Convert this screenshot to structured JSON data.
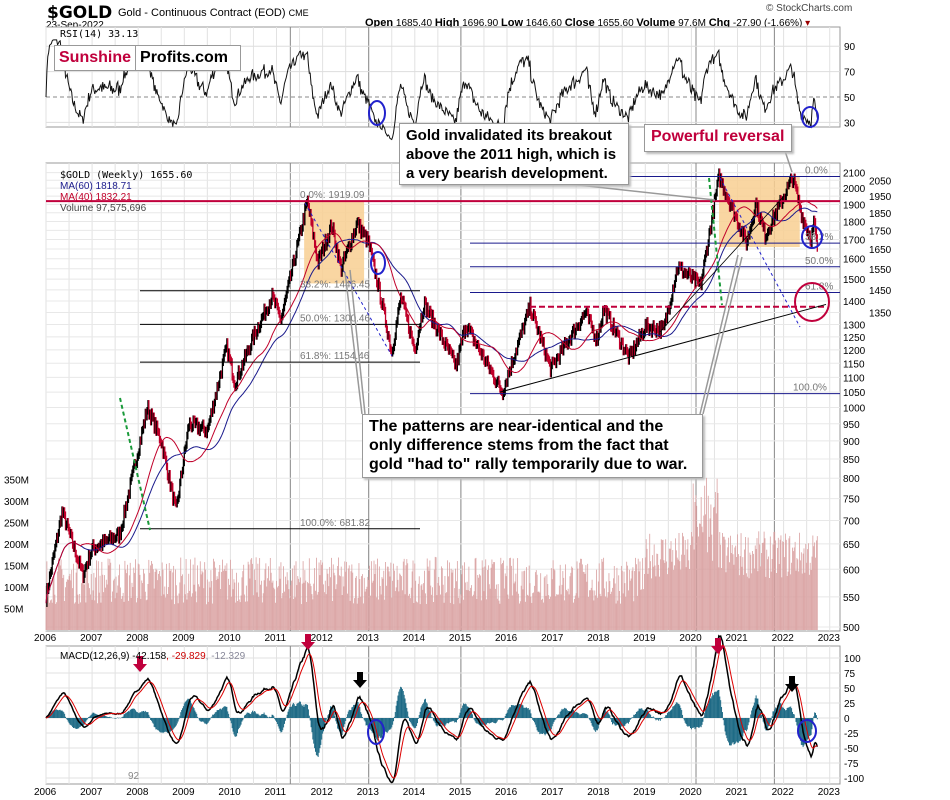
{
  "header": {
    "symbol": "$GOLD",
    "name": "Gold - Continuous Contract (EOD)",
    "exchange": "CME",
    "date": "23-Sep-2022",
    "source": "© StockCharts.com",
    "open_label": "Open",
    "open": "1685.40",
    "high_label": "High",
    "high": "1696.90",
    "low_label": "Low",
    "low": "1646.60",
    "close_label": "Close",
    "close": "1655.60",
    "volume_label": "Volume",
    "volume": "97.6M",
    "chg_label": "Chg",
    "chg": "-27.90 (-1.66%)"
  },
  "logo": {
    "part1": "Sunshine",
    "part2": "Profits.com"
  },
  "rsi": {
    "label": "RSI(14) 33.13",
    "ticks": [
      90,
      70,
      50,
      30
    ]
  },
  "main": {
    "legend_price": "$GOLD (Weekly) 1655.60",
    "legend_ma60": "MA(60) 1818.71",
    "legend_ma40": "MA(40) 1832.21",
    "legend_volume": "Volume 97,575,696",
    "price_ticks": [
      2100,
      2050,
      2000,
      1950,
      1900,
      1850,
      1800,
      1750,
      1700,
      1650,
      1600,
      1550,
      1500,
      1450,
      1400,
      1350,
      1300,
      1250,
      1200,
      1150,
      1100,
      1050,
      1000,
      950,
      900,
      850,
      800,
      750,
      700,
      650,
      600,
      550,
      500
    ],
    "volume_ticks": [
      "350M",
      "300M",
      "250M",
      "200M",
      "150M",
      "100M",
      "50M"
    ],
    "fib_left": [
      "0.0%: 1919.09",
      "38.2%: 1446.45",
      "50.0%: 1300.46",
      "61.8%: 1154.46",
      "100.0%: 681.82"
    ],
    "fib_right": [
      "0.0%",
      "38.2%",
      "50.0%",
      "61.8%",
      "100.0%"
    ]
  },
  "annotations": {
    "breakout": "Gold invalidated its breakout above the 2011 high, which is a very bearish development.",
    "reversal": "Powerful reversal",
    "patterns": "The patterns are near-identical and the only difference stems from the fact that gold \"had to\" rally temporarily due to war."
  },
  "macd": {
    "label": "MACD(12,26,9)",
    "v1": "-42.158",
    "v2": ", -29.829",
    "v3": ", -12.329",
    "ticks": [
      100,
      75,
      50,
      25,
      0,
      -25,
      -50,
      -75,
      -100
    ],
    "corner": "92"
  },
  "years": [
    "2006",
    "2007",
    "2008",
    "2009",
    "2010",
    "2011",
    "2012",
    "2013",
    "2014",
    "2015",
    "2016",
    "2017",
    "2018",
    "2019",
    "2020",
    "2021",
    "2022",
    "2023"
  ],
  "colors": {
    "up": "#000000",
    "down": "#c0002a",
    "ma60": "#1a1a8c",
    "ma40": "#c0002a",
    "volume": "#d9a0a0",
    "macd_hist": "#1f6b86",
    "accent": "#c0003c",
    "fib": "#1a1a8c",
    "box": "#f8cf92"
  },
  "chart_data": {
    "type": "line",
    "title": "$GOLD Gold - Continuous Contract (EOD) Weekly",
    "ylabel": "Price",
    "ylim": [
      500,
      2100
    ],
    "scale": "log",
    "keypoints": [
      [
        2006.0,
        550
      ],
      [
        2006.35,
        720
      ],
      [
        2006.8,
        590
      ],
      [
        2007.0,
        640
      ],
      [
        2007.6,
        670
      ],
      [
        2008.2,
        1000
      ],
      [
        2008.5,
        900
      ],
      [
        2008.82,
        720
      ],
      [
        2009.1,
        950
      ],
      [
        2009.5,
        930
      ],
      [
        2009.92,
        1210
      ],
      [
        2010.1,
        1080
      ],
      [
        2010.5,
        1250
      ],
      [
        2010.9,
        1420
      ],
      [
        2011.1,
        1320
      ],
      [
        2011.67,
        1919
      ],
      [
        2011.9,
        1580
      ],
      [
        2012.2,
        1780
      ],
      [
        2012.4,
        1550
      ],
      [
        2012.75,
        1790
      ],
      [
        2013.0,
        1680
      ],
      [
        2013.3,
        1380
      ],
      [
        2013.5,
        1190
      ],
      [
        2013.7,
        1420
      ],
      [
        2014.0,
        1200
      ],
      [
        2014.2,
        1390
      ],
      [
        2014.9,
        1140
      ],
      [
        2015.1,
        1300
      ],
      [
        2015.9,
        1050
      ],
      [
        2016.5,
        1375
      ],
      [
        2016.95,
        1130
      ],
      [
        2017.7,
        1350
      ],
      [
        2017.95,
        1240
      ],
      [
        2018.1,
        1365
      ],
      [
        2018.65,
        1170
      ],
      [
        2019.0,
        1290
      ],
      [
        2019.4,
        1280
      ],
      [
        2019.7,
        1560
      ],
      [
        2020.2,
        1470
      ],
      [
        2020.6,
        2075
      ],
      [
        2021.2,
        1680
      ],
      [
        2021.4,
        1910
      ],
      [
        2021.6,
        1720
      ],
      [
        2022.2,
        2070
      ],
      [
        2022.4,
        1830
      ],
      [
        2022.6,
        1700
      ],
      [
        2022.66,
        1800
      ],
      [
        2022.73,
        1655
      ]
    ]
  }
}
